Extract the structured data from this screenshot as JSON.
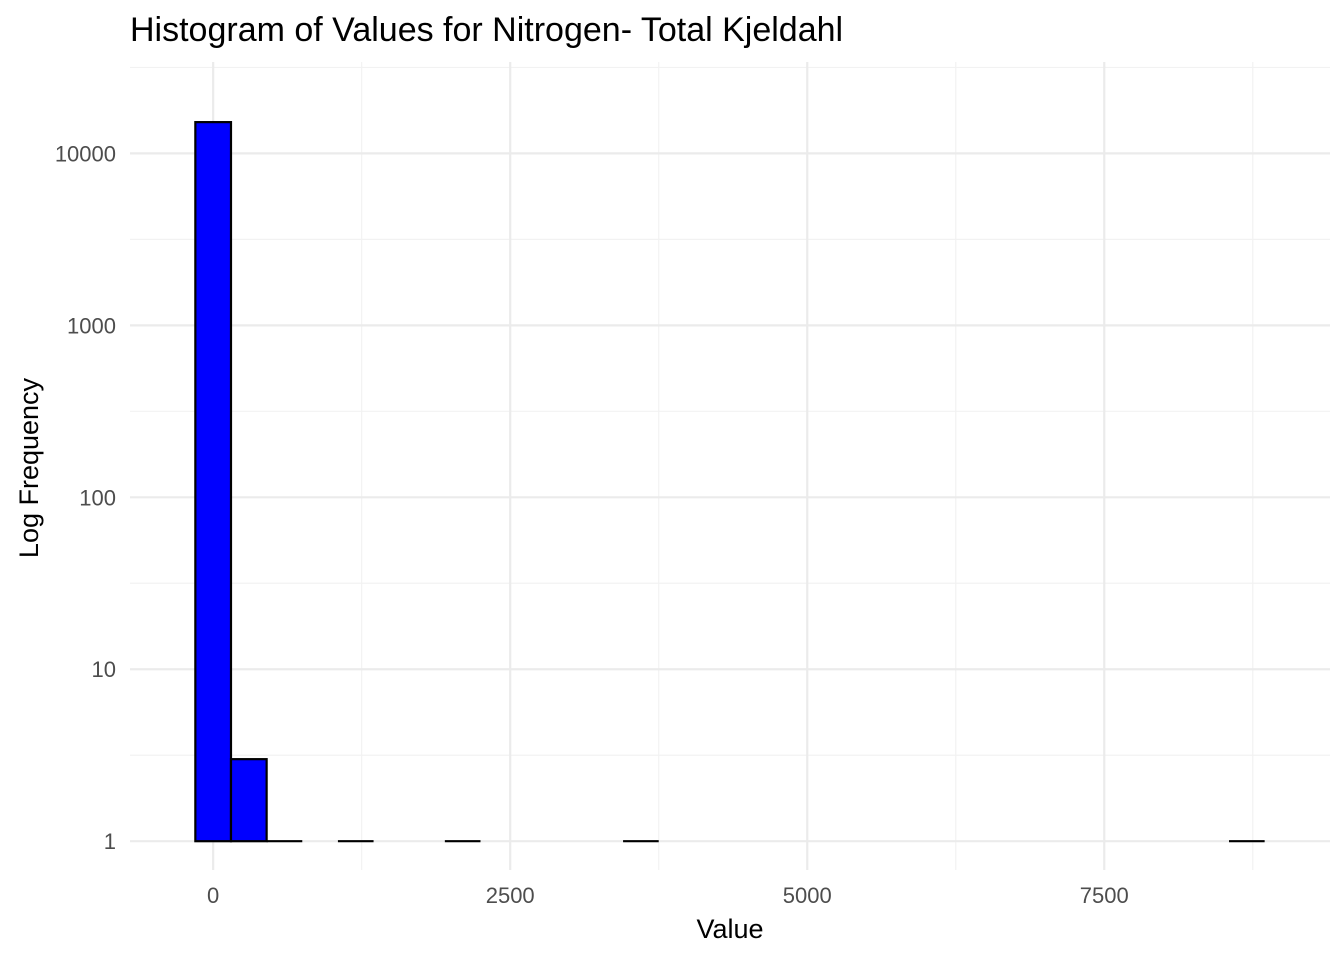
{
  "chart_data": {
    "type": "bar",
    "title": "Histogram of Values for Nitrogen- Total Kjeldahl",
    "xlabel": "Value",
    "ylabel": "Log Frequency",
    "y_scale": "log10",
    "xlim": [
      -700,
      9400
    ],
    "ylim": [
      0.68,
      34000
    ],
    "x_ticks": [
      0,
      2500,
      5000,
      7500
    ],
    "x_tick_labels": [
      "0",
      "2500",
      "5000",
      "7500"
    ],
    "y_ticks": [
      1,
      10,
      100,
      1000,
      10000
    ],
    "y_tick_labels": [
      "1",
      "10",
      "100",
      "1000",
      "10000"
    ],
    "grid": true,
    "legend": "none",
    "bins": [
      {
        "x0": -150,
        "x1": 150,
        "count": 15200
      },
      {
        "x0": 150,
        "x1": 450,
        "count": 3
      },
      {
        "x0": 450,
        "x1": 750,
        "count": 1
      },
      {
        "x0": 1050,
        "x1": 1350,
        "count": 1
      },
      {
        "x0": 1950,
        "x1": 2250,
        "count": 1
      },
      {
        "x0": 3450,
        "x1": 3750,
        "count": 1
      },
      {
        "x0": 8550,
        "x1": 8850,
        "count": 1
      }
    ],
    "colors": {
      "bar_fill": "#0000ff",
      "bar_stroke": "#000000",
      "grid": "#ebebeb"
    }
  }
}
